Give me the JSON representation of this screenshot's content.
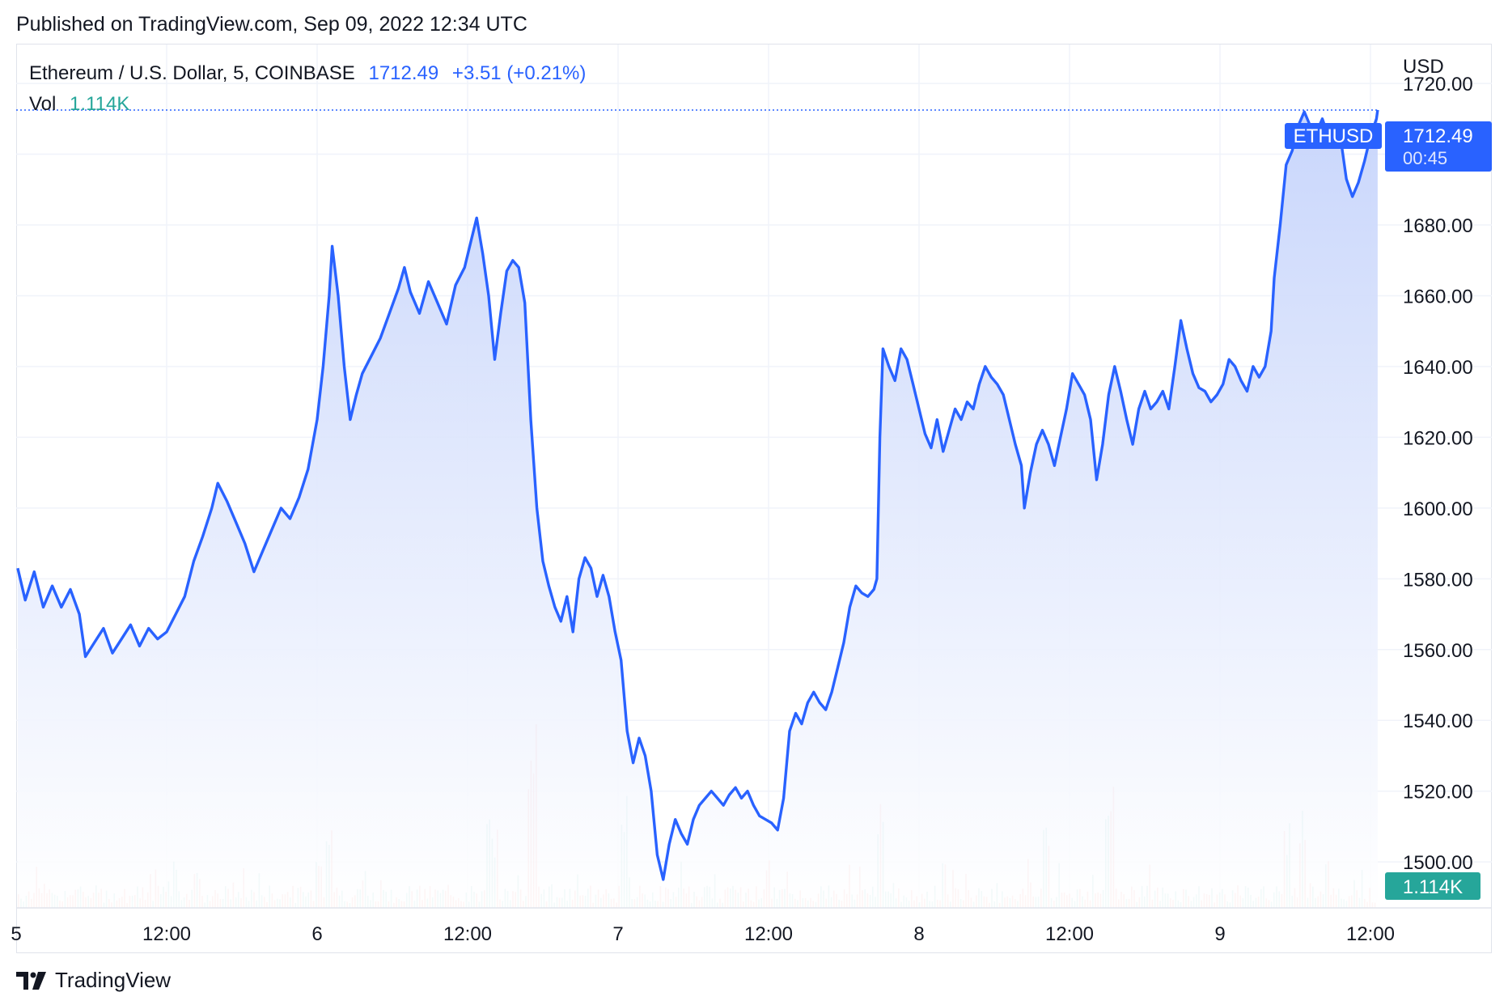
{
  "published": "Published on TradingView.com, Sep 09, 2022 12:34 UTC",
  "legend": {
    "symbol": "Ethereum / U.S. Dollar, 5, COINBASE",
    "price": "1712.49",
    "change": "+3.51 (+0.21%)",
    "vol_label": "Vol",
    "vol_value": "1.114K"
  },
  "footer": {
    "brand": "TradingView"
  },
  "colors": {
    "line": "#2962ff",
    "fill_top": "#c6d4fb",
    "fill_bottom": "#ffffff",
    "vol_up": "#26a69a",
    "vol_down": "#ef5350",
    "grid": "#f0f3fa",
    "axis_text": "#131722"
  },
  "chart_data": {
    "type": "area",
    "symbol_tag": "ETHUSD",
    "currency": "USD",
    "last_price": "1712.49",
    "countdown": "00:45",
    "last_volume": "1.114K",
    "ylim": [
      1487,
      1731
    ],
    "y_ticks": [
      "1720.00",
      "1700.00",
      "1680.00",
      "1660.00",
      "1640.00",
      "1620.00",
      "1600.00",
      "1580.00",
      "1560.00",
      "1540.00",
      "1520.00",
      "1500.00"
    ],
    "x_ticks": [
      {
        "label": "5",
        "t": 0.0
      },
      {
        "label": "12:00",
        "t": 0.5
      },
      {
        "label": "6",
        "t": 1.0
      },
      {
        "label": "12:00",
        "t": 1.5
      },
      {
        "label": "7",
        "t": 2.0
      },
      {
        "label": "12:00",
        "t": 2.5
      },
      {
        "label": "8",
        "t": 3.0
      },
      {
        "label": "12:00",
        "t": 3.5
      },
      {
        "label": "9",
        "t": 4.0
      },
      {
        "label": "12:00",
        "t": 4.5
      }
    ],
    "x_range_days": [
      0.005,
      4.524
    ],
    "series": [
      {
        "values": [
          [
            0.005,
            1583
          ],
          [
            0.03,
            1574
          ],
          [
            0.06,
            1582
          ],
          [
            0.09,
            1572
          ],
          [
            0.12,
            1578
          ],
          [
            0.15,
            1572
          ],
          [
            0.18,
            1577
          ],
          [
            0.21,
            1570
          ],
          [
            0.23,
            1558
          ],
          [
            0.26,
            1562
          ],
          [
            0.29,
            1566
          ],
          [
            0.32,
            1559
          ],
          [
            0.35,
            1563
          ],
          [
            0.38,
            1567
          ],
          [
            0.41,
            1561
          ],
          [
            0.44,
            1566
          ],
          [
            0.47,
            1563
          ],
          [
            0.5,
            1565
          ],
          [
            0.53,
            1570
          ],
          [
            0.56,
            1575
          ],
          [
            0.59,
            1585
          ],
          [
            0.62,
            1592
          ],
          [
            0.65,
            1600
          ],
          [
            0.67,
            1607
          ],
          [
            0.7,
            1602
          ],
          [
            0.73,
            1596
          ],
          [
            0.76,
            1590
          ],
          [
            0.79,
            1582
          ],
          [
            0.82,
            1588
          ],
          [
            0.85,
            1594
          ],
          [
            0.88,
            1600
          ],
          [
            0.91,
            1597
          ],
          [
            0.94,
            1603
          ],
          [
            0.97,
            1611
          ],
          [
            1.0,
            1625
          ],
          [
            1.02,
            1640
          ],
          [
            1.04,
            1660
          ],
          [
            1.05,
            1674
          ],
          [
            1.07,
            1660
          ],
          [
            1.09,
            1640
          ],
          [
            1.11,
            1625
          ],
          [
            1.13,
            1632
          ],
          [
            1.15,
            1638
          ],
          [
            1.18,
            1643
          ],
          [
            1.21,
            1648
          ],
          [
            1.24,
            1655
          ],
          [
            1.27,
            1662
          ],
          [
            1.29,
            1668
          ],
          [
            1.31,
            1661
          ],
          [
            1.34,
            1655
          ],
          [
            1.37,
            1664
          ],
          [
            1.4,
            1658
          ],
          [
            1.43,
            1652
          ],
          [
            1.46,
            1663
          ],
          [
            1.49,
            1668
          ],
          [
            1.51,
            1675
          ],
          [
            1.53,
            1682
          ],
          [
            1.55,
            1672
          ],
          [
            1.57,
            1660
          ],
          [
            1.59,
            1642
          ],
          [
            1.61,
            1655
          ],
          [
            1.63,
            1667
          ],
          [
            1.65,
            1670
          ],
          [
            1.67,
            1668
          ],
          [
            1.69,
            1658
          ],
          [
            1.71,
            1625
          ],
          [
            1.73,
            1600
          ],
          [
            1.75,
            1585
          ],
          [
            1.77,
            1578
          ],
          [
            1.79,
            1572
          ],
          [
            1.81,
            1568
          ],
          [
            1.83,
            1575
          ],
          [
            1.85,
            1565
          ],
          [
            1.87,
            1580
          ],
          [
            1.89,
            1586
          ],
          [
            1.91,
            1583
          ],
          [
            1.93,
            1575
          ],
          [
            1.95,
            1581
          ],
          [
            1.97,
            1575
          ],
          [
            1.99,
            1565
          ],
          [
            2.01,
            1557
          ],
          [
            2.03,
            1537
          ],
          [
            2.05,
            1528
          ],
          [
            2.07,
            1535
          ],
          [
            2.09,
            1530
          ],
          [
            2.11,
            1520
          ],
          [
            2.13,
            1502
          ],
          [
            2.15,
            1495
          ],
          [
            2.17,
            1505
          ],
          [
            2.19,
            1512
          ],
          [
            2.21,
            1508
          ],
          [
            2.23,
            1505
          ],
          [
            2.25,
            1512
          ],
          [
            2.27,
            1516
          ],
          [
            2.29,
            1518
          ],
          [
            2.31,
            1520
          ],
          [
            2.33,
            1518
          ],
          [
            2.35,
            1516
          ],
          [
            2.37,
            1519
          ],
          [
            2.39,
            1521
          ],
          [
            2.41,
            1518
          ],
          [
            2.43,
            1520
          ],
          [
            2.45,
            1516
          ],
          [
            2.47,
            1513
          ],
          [
            2.49,
            1512
          ],
          [
            2.51,
            1511
          ],
          [
            2.53,
            1509
          ],
          [
            2.55,
            1518
          ],
          [
            2.57,
            1537
          ],
          [
            2.59,
            1542
          ],
          [
            2.61,
            1539
          ],
          [
            2.63,
            1545
          ],
          [
            2.65,
            1548
          ],
          [
            2.67,
            1545
          ],
          [
            2.69,
            1543
          ],
          [
            2.71,
            1548
          ],
          [
            2.73,
            1555
          ],
          [
            2.75,
            1562
          ],
          [
            2.77,
            1572
          ],
          [
            2.79,
            1578
          ],
          [
            2.81,
            1576
          ],
          [
            2.83,
            1575
          ],
          [
            2.85,
            1577
          ],
          [
            2.86,
            1580
          ],
          [
            2.87,
            1620
          ],
          [
            2.88,
            1645
          ],
          [
            2.9,
            1640
          ],
          [
            2.92,
            1636
          ],
          [
            2.94,
            1645
          ],
          [
            2.96,
            1642
          ],
          [
            2.98,
            1635
          ],
          [
            3.0,
            1628
          ],
          [
            3.02,
            1621
          ],
          [
            3.04,
            1617
          ],
          [
            3.06,
            1625
          ],
          [
            3.08,
            1616
          ],
          [
            3.1,
            1622
          ],
          [
            3.12,
            1628
          ],
          [
            3.14,
            1625
          ],
          [
            3.16,
            1630
          ],
          [
            3.18,
            1628
          ],
          [
            3.2,
            1635
          ],
          [
            3.22,
            1640
          ],
          [
            3.24,
            1637
          ],
          [
            3.26,
            1635
          ],
          [
            3.28,
            1632
          ],
          [
            3.3,
            1625
          ],
          [
            3.32,
            1618
          ],
          [
            3.34,
            1612
          ],
          [
            3.35,
            1600
          ],
          [
            3.37,
            1610
          ],
          [
            3.39,
            1618
          ],
          [
            3.41,
            1622
          ],
          [
            3.43,
            1618
          ],
          [
            3.45,
            1612
          ],
          [
            3.47,
            1620
          ],
          [
            3.49,
            1628
          ],
          [
            3.51,
            1638
          ],
          [
            3.53,
            1635
          ],
          [
            3.55,
            1632
          ],
          [
            3.57,
            1625
          ],
          [
            3.59,
            1608
          ],
          [
            3.61,
            1618
          ],
          [
            3.63,
            1632
          ],
          [
            3.65,
            1640
          ],
          [
            3.67,
            1633
          ],
          [
            3.69,
            1625
          ],
          [
            3.71,
            1618
          ],
          [
            3.73,
            1628
          ],
          [
            3.75,
            1633
          ],
          [
            3.77,
            1628
          ],
          [
            3.79,
            1630
          ],
          [
            3.81,
            1633
          ],
          [
            3.83,
            1628
          ],
          [
            3.85,
            1640
          ],
          [
            3.87,
            1653
          ],
          [
            3.89,
            1645
          ],
          [
            3.91,
            1638
          ],
          [
            3.93,
            1634
          ],
          [
            3.95,
            1633
          ],
          [
            3.97,
            1630
          ],
          [
            3.99,
            1632
          ],
          [
            4.01,
            1635
          ],
          [
            4.03,
            1642
          ],
          [
            4.05,
            1640
          ],
          [
            4.07,
            1636
          ],
          [
            4.09,
            1633
          ],
          [
            4.11,
            1640
          ],
          [
            4.13,
            1637
          ],
          [
            4.15,
            1640
          ],
          [
            4.17,
            1650
          ],
          [
            4.18,
            1665
          ],
          [
            4.2,
            1680
          ],
          [
            4.22,
            1697
          ],
          [
            4.24,
            1701
          ],
          [
            4.26,
            1708
          ],
          [
            4.28,
            1712
          ],
          [
            4.3,
            1708
          ],
          [
            4.32,
            1706
          ],
          [
            4.34,
            1710
          ],
          [
            4.36,
            1705
          ],
          [
            4.38,
            1707
          ],
          [
            4.4,
            1705
          ],
          [
            4.42,
            1693
          ],
          [
            4.44,
            1688
          ],
          [
            4.46,
            1692
          ],
          [
            4.48,
            1698
          ],
          [
            4.5,
            1705
          ],
          [
            4.52,
            1710
          ],
          [
            4.524,
            1712.49
          ]
        ]
      }
    ]
  }
}
